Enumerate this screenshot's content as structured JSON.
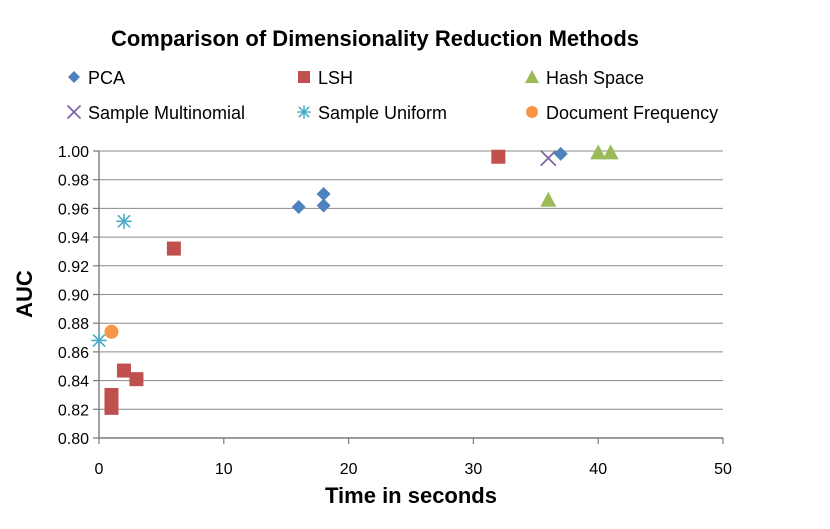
{
  "chart_data": {
    "type": "scatter",
    "title": "Comparison of Dimensionality Reduction Methods",
    "xlabel": "Time in seconds",
    "ylabel": "AUC",
    "xlim": [
      0,
      50
    ],
    "ylim": [
      0.8,
      1.0
    ],
    "x_ticks": [
      0,
      10,
      20,
      30,
      40,
      50
    ],
    "y_ticks": [
      0.8,
      0.82,
      0.84,
      0.86,
      0.88,
      0.9,
      0.92,
      0.94,
      0.96,
      0.98,
      1.0
    ],
    "x_tick_labels": [
      "0",
      "10",
      "20",
      "30",
      "40",
      "50"
    ],
    "y_tick_labels": [
      "0.80",
      "0.82",
      "0.84",
      "0.86",
      "0.88",
      "0.90",
      "0.92",
      "0.94",
      "0.96",
      "0.98",
      "1.00"
    ],
    "grid": {
      "horizontal": true,
      "vertical": false
    },
    "legend_position": "top",
    "series": [
      {
        "name": "PCA",
        "marker": "diamond",
        "color": "#4f81bd",
        "points": [
          [
            16,
            0.961
          ],
          [
            18,
            0.962
          ],
          [
            18,
            0.97
          ],
          [
            37,
            0.998
          ]
        ]
      },
      {
        "name": "LSH",
        "marker": "square",
        "color": "#c0504d",
        "points": [
          [
            1,
            0.821
          ],
          [
            1,
            0.826
          ],
          [
            1,
            0.83
          ],
          [
            2,
            0.847
          ],
          [
            3,
            0.841
          ],
          [
            6,
            0.932
          ],
          [
            32,
            0.996
          ]
        ]
      },
      {
        "name": "Hash Space",
        "marker": "triangle",
        "color": "#9bbb59",
        "points": [
          [
            36,
            0.966
          ],
          [
            40,
            0.999
          ],
          [
            41,
            0.999
          ]
        ]
      },
      {
        "name": "Sample Multinomial",
        "marker": "x",
        "color": "#8064a2",
        "points": [
          [
            36,
            0.995
          ]
        ]
      },
      {
        "name": "Sample Uniform",
        "marker": "star",
        "color": "#4bacc6",
        "points": [
          [
            0,
            0.868
          ],
          [
            2,
            0.951
          ]
        ]
      },
      {
        "name": "Document Frequency",
        "marker": "circle",
        "color": "#f79646",
        "points": [
          [
            1,
            0.874
          ]
        ]
      }
    ]
  }
}
